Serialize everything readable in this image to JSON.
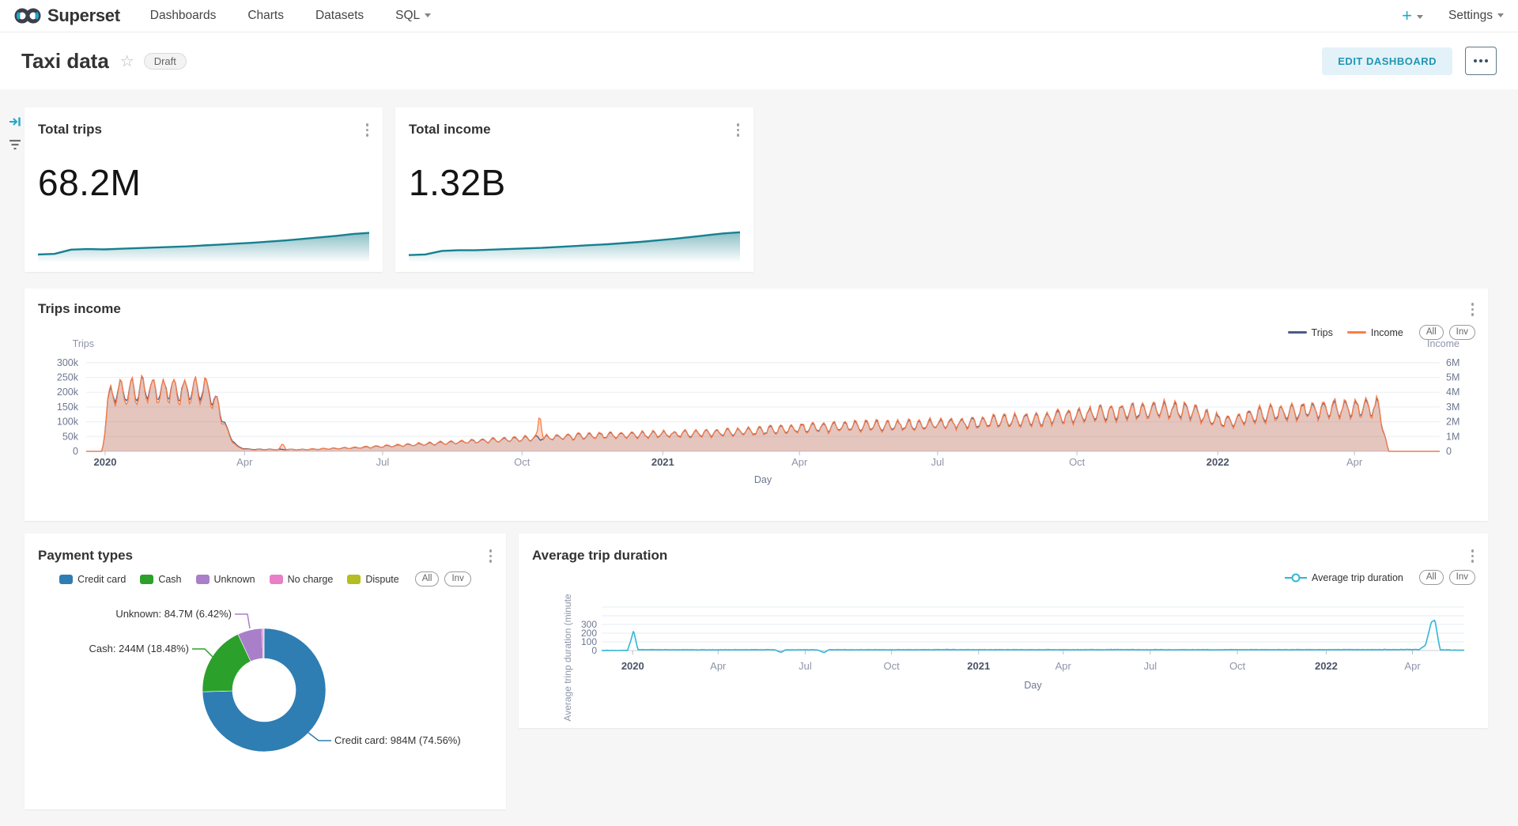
{
  "navbar": {
    "brand": "Superset",
    "items": [
      {
        "label": "Dashboards"
      },
      {
        "label": "Charts"
      },
      {
        "label": "Datasets"
      },
      {
        "label": "SQL"
      }
    ],
    "plus_label": "+",
    "settings_label": "Settings"
  },
  "dashboard_header": {
    "title": "Taxi data",
    "status_badge": "Draft",
    "edit_button": "EDIT DASHBOARD"
  },
  "colors": {
    "brand_teal": "#20a7c9",
    "spark_teal": "#17808f",
    "trips_navy": "#4e5a88",
    "income_orange": "#fb7d49",
    "duration_cyan": "#33b5d8"
  },
  "cards": {
    "total_trips": {
      "title": "Total trips",
      "value": "68.2M"
    },
    "total_income": {
      "title": "Total income",
      "value": "1.32B"
    },
    "trips_income": {
      "title": "Trips income"
    },
    "payment_types": {
      "title": "Payment types"
    },
    "avg_duration": {
      "title": "Average trip duration"
    }
  },
  "chart_data": [
    {
      "type": "area",
      "name": "total_trips_trend",
      "title": "Total trips",
      "headline_value": "68.2M",
      "color": "#17808f",
      "trend": [
        0.16,
        0.18,
        0.32,
        0.34,
        0.33,
        0.35,
        0.37,
        0.39,
        0.41,
        0.43,
        0.46,
        0.49,
        0.52,
        0.55,
        0.59,
        0.63,
        0.68,
        0.73,
        0.78,
        0.84,
        0.88
      ]
    },
    {
      "type": "area",
      "name": "total_income_trend",
      "title": "Total income",
      "headline_value": "1.32B",
      "color": "#17808f",
      "trend": [
        0.14,
        0.16,
        0.28,
        0.3,
        0.3,
        0.32,
        0.34,
        0.36,
        0.38,
        0.41,
        0.44,
        0.47,
        0.5,
        0.54,
        0.58,
        0.63,
        0.68,
        0.74,
        0.8,
        0.86,
        0.9
      ]
    },
    {
      "type": "line",
      "name": "trips_income",
      "title": "Trips income",
      "xlabel": "Day",
      "legend_buttons": [
        "All",
        "Inv"
      ],
      "legend_swatch": "line",
      "legend": [
        {
          "label": "Trips",
          "color": "#4e5a88"
        },
        {
          "label": "Income",
          "color": "#fb7d49"
        }
      ],
      "x_ticks": [
        {
          "label": "2020",
          "pos": 0.014,
          "bold": true
        },
        {
          "label": "Apr",
          "pos": 0.117
        },
        {
          "label": "Jul",
          "pos": 0.219
        },
        {
          "label": "Oct",
          "pos": 0.322
        },
        {
          "label": "2021",
          "pos": 0.426,
          "bold": true
        },
        {
          "label": "Apr",
          "pos": 0.527
        },
        {
          "label": "Jul",
          "pos": 0.629
        },
        {
          "label": "Oct",
          "pos": 0.732
        },
        {
          "label": "2022",
          "pos": 0.836,
          "bold": true
        },
        {
          "label": "Apr",
          "pos": 0.937
        }
      ],
      "y_left": {
        "name": "Trips",
        "ticks": [
          "300k",
          "250k",
          "200k",
          "150k",
          "100k",
          "50k",
          "0"
        ],
        "unit_per_grid": 50000
      },
      "y_right": {
        "name": "Income",
        "ticks": [
          "6M",
          "5M",
          "4M",
          "3M",
          "2M",
          "1M",
          "0"
        ],
        "unit_per_grid": 1000000
      },
      "series": [
        {
          "name": "Trips",
          "axis": "left",
          "color": "#4e5a88",
          "fill": "rgba(93,103,145,0.16)",
          "weekly_osc": 0.17,
          "jitter": 0.05,
          "anchors_format": "[fraction_of_x_range, trips_per_day]",
          "anchors": [
            [
              0,
              0
            ],
            [
              0.012,
              0
            ],
            [
              0.016,
              170000
            ],
            [
              0.022,
              205000
            ],
            [
              0.05,
              210000
            ],
            [
              0.09,
              215000
            ],
            [
              0.098,
              150000
            ],
            [
              0.105,
              60000
            ],
            [
              0.112,
              15000
            ],
            [
              0.12,
              7000
            ],
            [
              0.16,
              6000
            ],
            [
              0.2,
              12000
            ],
            [
              0.24,
              22000
            ],
            [
              0.28,
              32000
            ],
            [
              0.32,
              42000
            ],
            [
              0.36,
              50000
            ],
            [
              0.4,
              55000
            ],
            [
              0.43,
              58000
            ],
            [
              0.47,
              63000
            ],
            [
              0.5,
              70000
            ],
            [
              0.53,
              78000
            ],
            [
              0.57,
              85000
            ],
            [
              0.6,
              88000
            ],
            [
              0.63,
              92000
            ],
            [
              0.66,
              98000
            ],
            [
              0.7,
              108000
            ],
            [
              0.73,
              120000
            ],
            [
              0.76,
              132000
            ],
            [
              0.79,
              140000
            ],
            [
              0.815,
              138000
            ],
            [
              0.83,
              112000
            ],
            [
              0.845,
              98000
            ],
            [
              0.86,
              120000
            ],
            [
              0.88,
              132000
            ],
            [
              0.9,
              138000
            ],
            [
              0.92,
              142000
            ],
            [
              0.94,
              148000
            ],
            [
              0.955,
              150000
            ],
            [
              0.962,
              0
            ],
            [
              1,
              0
            ]
          ]
        },
        {
          "name": "Income",
          "axis": "right",
          "color": "#fb7d49",
          "fill": "rgba(251,125,73,0.30)",
          "weekly_osc": 0.21,
          "jitter": 0.06,
          "spikes": [
            [
              0.145,
              550000
            ],
            [
              0.335,
              2650000
            ]
          ],
          "anchors_format": "[fraction_of_x_range, income_per_day]",
          "anchors": [
            [
              0,
              0
            ],
            [
              0.012,
              0
            ],
            [
              0.016,
              3400000
            ],
            [
              0.022,
              4000000
            ],
            [
              0.05,
              4100000
            ],
            [
              0.09,
              4200000
            ],
            [
              0.098,
              2900000
            ],
            [
              0.105,
              1100000
            ],
            [
              0.112,
              250000
            ],
            [
              0.12,
              120000
            ],
            [
              0.16,
              120000
            ],
            [
              0.2,
              250000
            ],
            [
              0.24,
              450000
            ],
            [
              0.28,
              650000
            ],
            [
              0.32,
              850000
            ],
            [
              0.36,
              1000000
            ],
            [
              0.4,
              1100000
            ],
            [
              0.43,
              1150000
            ],
            [
              0.47,
              1250000
            ],
            [
              0.5,
              1400000
            ],
            [
              0.53,
              1550000
            ],
            [
              0.57,
              1700000
            ],
            [
              0.6,
              1750000
            ],
            [
              0.63,
              1850000
            ],
            [
              0.66,
              1950000
            ],
            [
              0.7,
              2150000
            ],
            [
              0.73,
              2400000
            ],
            [
              0.76,
              2600000
            ],
            [
              0.79,
              2800000
            ],
            [
              0.815,
              2750000
            ],
            [
              0.83,
              2250000
            ],
            [
              0.845,
              1950000
            ],
            [
              0.86,
              2400000
            ],
            [
              0.88,
              2600000
            ],
            [
              0.9,
              2750000
            ],
            [
              0.92,
              2850000
            ],
            [
              0.94,
              2950000
            ],
            [
              0.955,
              3000000
            ],
            [
              0.962,
              0
            ],
            [
              1,
              0
            ]
          ]
        }
      ]
    },
    {
      "type": "pie",
      "name": "payment_types",
      "title": "Payment types",
      "legend_buttons": [
        "All",
        "Inv"
      ],
      "legend_swatch": "rect",
      "legend": [
        {
          "label": "Credit card",
          "color": "#2e7db3"
        },
        {
          "label": "Cash",
          "color": "#2ba02b"
        },
        {
          "label": "Unknown",
          "color": "#a97fc9"
        },
        {
          "label": "No charge",
          "color": "#e87fc8"
        },
        {
          "label": "Dispute",
          "color": "#b4bd22"
        }
      ],
      "slices": [
        {
          "label": "Credit card",
          "value": "984M",
          "pct": 74.56
        },
        {
          "label": "Cash",
          "value": "244M",
          "pct": 18.48
        },
        {
          "label": "Unknown",
          "value": "84.7M",
          "pct": 6.42
        },
        {
          "label": "No charge",
          "pct": 0.45
        },
        {
          "label": "Dispute",
          "pct": 0.09
        }
      ],
      "callouts": [
        "Unknown: 84.7M (6.42%)",
        "Cash: 244M (18.48%)",
        "Credit card: 984M (74.56%)"
      ]
    },
    {
      "type": "line",
      "name": "avg_trip_duration",
      "title": "Average trip duration",
      "xlabel": "Day",
      "ylabel": "Average trinp duration (minute",
      "legend_buttons": [
        "All",
        "Inv"
      ],
      "legend_swatch": "line-marker",
      "legend": [
        {
          "label": "Average trip duration",
          "color": "#33b5d8"
        }
      ],
      "x_ticks": [
        {
          "label": "2020",
          "pos": 0.036,
          "bold": true
        },
        {
          "label": "Apr",
          "pos": 0.135
        },
        {
          "label": "Jul",
          "pos": 0.236
        },
        {
          "label": "Oct",
          "pos": 0.336
        },
        {
          "label": "2021",
          "pos": 0.437,
          "bold": true
        },
        {
          "label": "Apr",
          "pos": 0.535
        },
        {
          "label": "Jul",
          "pos": 0.636
        },
        {
          "label": "Oct",
          "pos": 0.737
        },
        {
          "label": "2022",
          "pos": 0.84,
          "bold": true
        },
        {
          "label": "Apr",
          "pos": 0.94
        }
      ],
      "y_ticks": [
        "300",
        "200",
        "100",
        "0"
      ],
      "y_grid_max": 500,
      "series": [
        {
          "name": "Average trip duration",
          "color": "#33b5d8",
          "anchors_format": "[fraction_of_x_range, minutes]",
          "anchors": [
            [
              0,
              0
            ],
            [
              0.03,
              2
            ],
            [
              0.034,
              120
            ],
            [
              0.037,
              230
            ],
            [
              0.042,
              10
            ],
            [
              0.1,
              8
            ],
            [
              0.2,
              9
            ],
            [
              0.208,
              -20
            ],
            [
              0.213,
              8
            ],
            [
              0.25,
              8
            ],
            [
              0.258,
              -25
            ],
            [
              0.263,
              9
            ],
            [
              0.3,
              8
            ],
            [
              0.4,
              10
            ],
            [
              0.5,
              9
            ],
            [
              0.6,
              10
            ],
            [
              0.7,
              9
            ],
            [
              0.8,
              10
            ],
            [
              0.9,
              10
            ],
            [
              0.948,
              12
            ],
            [
              0.955,
              60
            ],
            [
              0.962,
              330
            ],
            [
              0.966,
              350
            ],
            [
              0.972,
              8
            ],
            [
              1,
              4
            ]
          ]
        }
      ]
    }
  ]
}
